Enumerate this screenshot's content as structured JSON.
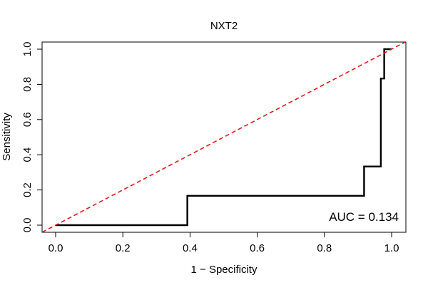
{
  "chart_data": {
    "type": "line",
    "title": "NXT2",
    "xlabel": "1 − Specificity",
    "ylabel": "Sensitivity",
    "xlim": [
      0,
      1
    ],
    "ylim": [
      0,
      1
    ],
    "x_ticks": [
      "0.0",
      "0.2",
      "0.4",
      "0.6",
      "0.8",
      "1.0"
    ],
    "y_ticks": [
      "0.0",
      "0.2",
      "0.4",
      "0.6",
      "0.8",
      "1.0"
    ],
    "grid": false,
    "annotation": "AUC = 0.134",
    "series": [
      {
        "type": "step",
        "color": "#000000",
        "x": [
          0.0,
          0.392,
          0.392,
          0.918,
          0.918,
          0.968,
          0.968,
          0.978,
          0.978,
          1.0
        ],
        "y": [
          0.0,
          0.0,
          0.167,
          0.167,
          0.333,
          0.333,
          0.833,
          0.833,
          1.0,
          1.0
        ]
      },
      {
        "type": "reference-diagonal",
        "color": "#e31a1c",
        "style": "dashed",
        "x": [
          0,
          1
        ],
        "y": [
          0,
          1
        ]
      }
    ]
  }
}
